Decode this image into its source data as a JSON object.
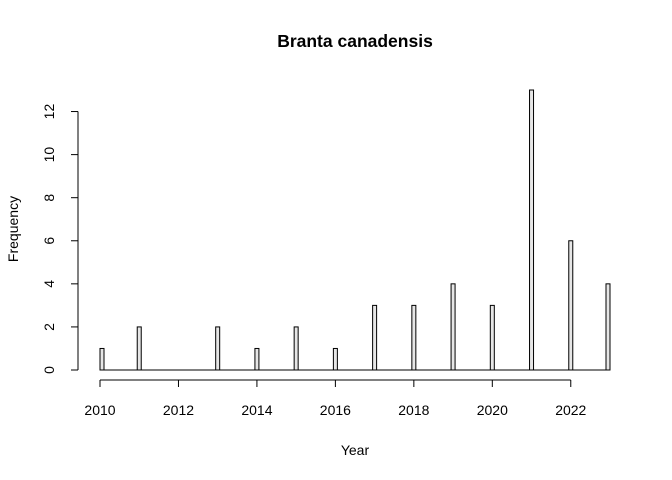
{
  "chart_data": {
    "type": "bar",
    "title": "Branta canadensis",
    "xlabel": "Year",
    "ylabel": "Frequency",
    "x": [
      2010,
      2011,
      2013,
      2014,
      2015,
      2016,
      2017,
      2018,
      2019,
      2020,
      2021,
      2022,
      2023
    ],
    "values": [
      1,
      2,
      2,
      1,
      2,
      1,
      3,
      3,
      4,
      3,
      13,
      6,
      4
    ],
    "xlim": [
      2010,
      2023
    ],
    "ylim": [
      0,
      13
    ],
    "x_ticks": [
      2010,
      2012,
      2014,
      2016,
      2018,
      2020,
      2022
    ],
    "y_ticks": [
      0,
      2,
      4,
      6,
      8,
      10,
      12
    ],
    "grid": false,
    "legend": "none",
    "bar_fill": "#e6e6e6",
    "bar_stroke": "#000000"
  }
}
